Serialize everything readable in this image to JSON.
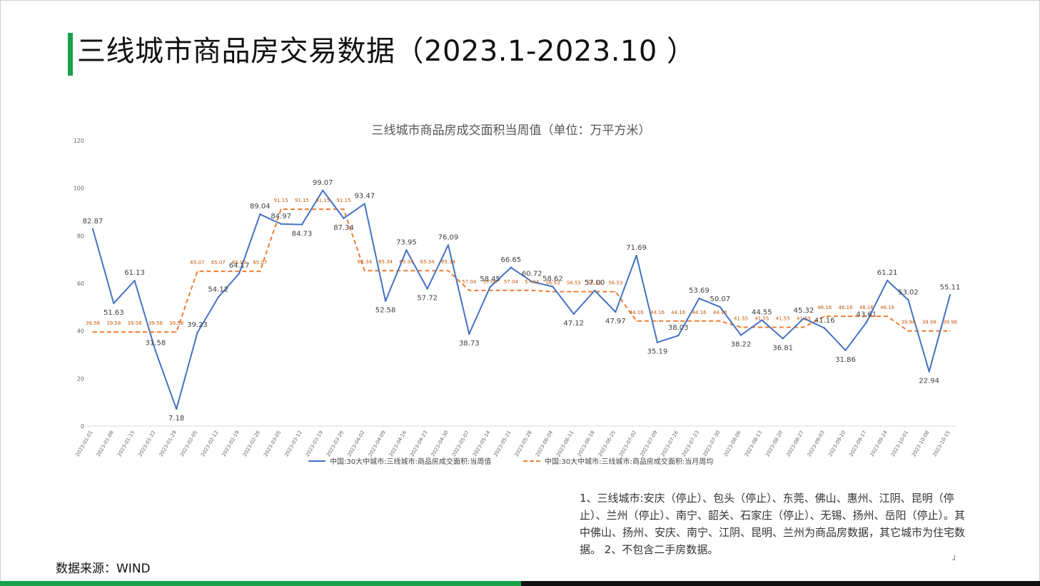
{
  "slide": {
    "title": "三线城市商品房交易数据（2023.1-2023.10 ）",
    "source": "数据来源：WIND",
    "footnote": "1、三线城市:安庆（停止）、包头（停止）、东莞、佛山、惠州、江阴、昆明（停止）、兰州（停止）、南宁、韶关、石家庄（停止）、无锡、扬州、岳阳（停止）。其中佛山、扬州、安庆、南宁、江阴、昆明、兰州为商品房数据，其它城市为住宅数据。 2、不包含二手房数据。",
    "corner_mark": "┘",
    "accent_color": "#1aa04a"
  },
  "chart_data": {
    "type": "line",
    "title": "三线城市商品房成交面积当周值（单位：万平方米）",
    "ylim": [
      0,
      120
    ],
    "yticks": [
      0,
      20,
      40,
      60,
      80,
      100,
      120
    ],
    "grid": false,
    "legend_position": "bottom",
    "categories": [
      "2023-01-01",
      "2023-01-08",
      "2023-01-15",
      "2023-01-22",
      "2023-01-29",
      "2023-02-05",
      "2023-02-12",
      "2023-02-19",
      "2023-02-26",
      "2023-03-05",
      "2023-03-12",
      "2023-03-19",
      "2023-03-26",
      "2023-04-02",
      "2023-04-09",
      "2023-04-16",
      "2023-04-23",
      "2023-04-30",
      "2023-05-07",
      "2023-05-14",
      "2023-05-21",
      "2023-05-28",
      "2023-06-04",
      "2023-06-11",
      "2023-06-18",
      "2023-06-25",
      "2023-07-02",
      "2023-07-09",
      "2023-07-16",
      "2023-07-23",
      "2023-07-30",
      "2023-08-06",
      "2023-08-13",
      "2023-08-20",
      "2023-08-27",
      "2023-09-03",
      "2023-09-10",
      "2023-09-17",
      "2023-09-24",
      "2023-10-01",
      "2023-10-08",
      "2023-10-15"
    ],
    "series": [
      {
        "name": "中国:30大中城市:三线城市:商品房成交面积:当周值",
        "color": "#4472c4",
        "style": "solid",
        "values": [
          82.87,
          51.63,
          61.13,
          31.58,
          7.18,
          39.23,
          54.12,
          64.17,
          89.04,
          84.97,
          84.73,
          99.07,
          87.34,
          93.47,
          52.58,
          73.95,
          57.72,
          76.09,
          38.73,
          58.45,
          66.65,
          60.72,
          58.62,
          47.12,
          57.0,
          47.97,
          71.69,
          35.19,
          38.03,
          53.69,
          50.07,
          38.22,
          44.55,
          36.81,
          45.32,
          41.16,
          31.86,
          43.61,
          61.21,
          53.02,
          22.94,
          55.11
        ],
        "labels": [
          "82.87",
          "51.63",
          "61.13",
          "31.58",
          "7.18",
          "39.23",
          "54.12",
          "64.17",
          "89.04",
          "84.97",
          "84.73",
          "99.07",
          "87.34",
          "93.47",
          "52.58",
          "73.95",
          "57.72",
          "76.09",
          "38.73",
          "58.45",
          "66.65",
          "60.72",
          "58.62",
          "47.12",
          "57.00",
          "47.97",
          "71.69",
          "35.19",
          "38.03",
          "53.69",
          "50.07",
          "38.22",
          "44.55",
          "36.81",
          "45.32",
          "41.16",
          "31.86",
          "43.61",
          "61.21",
          "53.02",
          "22.94",
          "55.11"
        ]
      },
      {
        "name": "中国:30大中城市:三线城市:商品房成交面积:当月周均",
        "color": "#ed7d31",
        "style": "dashed",
        "values": [
          39.58,
          39.58,
          39.58,
          39.58,
          39.58,
          65.07,
          65.07,
          65.07,
          65.07,
          91.15,
          91.15,
          91.15,
          91.15,
          65.34,
          65.34,
          65.34,
          65.34,
          65.34,
          57.04,
          57.04,
          57.04,
          57.04,
          56.53,
          56.53,
          56.53,
          56.53,
          44.16,
          44.16,
          44.16,
          44.16,
          44.16,
          41.55,
          41.55,
          41.55,
          41.55,
          46.16,
          46.16,
          46.16,
          46.16,
          39.98,
          39.98,
          39.98
        ],
        "labels": [
          "39.58",
          "39.58",
          "39.58",
          "39.58",
          "39.58",
          "65.07",
          "65.07",
          "65.07",
          "65.07",
          "91.15",
          "91.15",
          "91.15",
          "91.15",
          "65.34",
          "65.34",
          "65.34",
          "65.34",
          "65.34",
          "57.04",
          "57.04",
          "57.04",
          "57.04",
          "56.53",
          "56.53",
          "56.53",
          "56.53",
          "44.16",
          "44.16",
          "44.16",
          "44.16",
          "44.16",
          "41.55",
          "41.55",
          "41.55",
          "41.55",
          "46.16",
          "46.16",
          "46.16",
          "46.16",
          "39.98",
          "39.98",
          "39.98"
        ]
      }
    ]
  }
}
